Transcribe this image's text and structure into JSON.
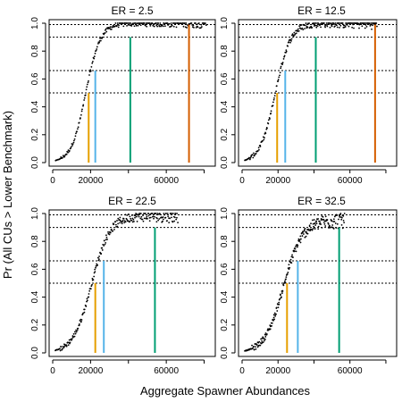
{
  "figure": {
    "ylabel": "Pr (All CUs > Lower Benchmark)",
    "xlabel": "Aggregate Spawner Abundances"
  },
  "chart_data": [
    {
      "type": "scatter",
      "title": "ER = 2.5",
      "xlim": [
        0,
        84000
      ],
      "ylim": [
        0,
        1
      ],
      "xticks": [
        0,
        20000,
        40000,
        60000,
        80000
      ],
      "xtick_labels": [
        "0",
        "20000",
        "",
        "60000",
        ""
      ],
      "yticks": [
        0,
        0.2,
        0.4,
        0.6,
        0.8,
        1.0
      ],
      "ytick_labels": [
        "0.0",
        "0.2",
        "0.4",
        "0.6",
        "0.8",
        "1.0"
      ],
      "hlines": [
        0.5,
        0.66,
        0.9,
        0.99
      ],
      "curve": {
        "x_start": 1500,
        "x_end": 81000,
        "mid": 17500,
        "scale": 3800,
        "plateau": 1.0,
        "noise": 0.012
      },
      "vlines": [
        {
          "x": 19000,
          "y": 0.5,
          "color": "#E69F00"
        },
        {
          "x": 22500,
          "y": 0.66,
          "color": "#56B4E9"
        },
        {
          "x": 41000,
          "y": 0.9,
          "color": "#009E73"
        },
        {
          "x": 72000,
          "y": 0.99,
          "color": "#D55E00"
        }
      ]
    },
    {
      "type": "scatter",
      "title": "ER = 12.5",
      "xlim": [
        0,
        84000
      ],
      "ylim": [
        0,
        1
      ],
      "xticks": [
        0,
        20000,
        40000,
        60000,
        80000
      ],
      "xtick_labels": [
        "0",
        "20000",
        "",
        "60000",
        ""
      ],
      "yticks": [
        0,
        0.2,
        0.4,
        0.6,
        0.8,
        1.0
      ],
      "ytick_labels": [
        "0.0",
        "0.2",
        "0.4",
        "0.6",
        "0.8",
        "1.0"
      ],
      "hlines": [
        0.5,
        0.66,
        0.9,
        0.99
      ],
      "curve": {
        "x_start": 1500,
        "x_end": 75000,
        "mid": 18500,
        "scale": 4200,
        "plateau": 1.0,
        "noise": 0.015
      },
      "vlines": [
        {
          "x": 19500,
          "y": 0.5,
          "color": "#E69F00"
        },
        {
          "x": 24000,
          "y": 0.66,
          "color": "#56B4E9"
        },
        {
          "x": 41000,
          "y": 0.9,
          "color": "#009E73"
        },
        {
          "x": 74000,
          "y": 0.99,
          "color": "#D55E00"
        }
      ]
    },
    {
      "type": "scatter",
      "title": "ER = 22.5",
      "xlim": [
        0,
        84000
      ],
      "ylim": [
        0,
        1
      ],
      "xticks": [
        0,
        20000,
        40000,
        60000,
        80000
      ],
      "xtick_labels": [
        "0",
        "20000",
        "",
        "60000",
        ""
      ],
      "yticks": [
        0,
        0.2,
        0.4,
        0.6,
        0.8,
        1.0
      ],
      "ytick_labels": [
        "0.0",
        "0.2",
        "0.4",
        "0.6",
        "0.8",
        "1.0"
      ],
      "hlines": [
        0.5,
        0.66,
        0.9,
        0.99
      ],
      "curve": {
        "x_start": 1500,
        "x_end": 66000,
        "mid": 20500,
        "scale": 4800,
        "plateau": 0.985,
        "noise": 0.018
      },
      "vlines": [
        {
          "x": 22500,
          "y": 0.5,
          "color": "#E69F00"
        },
        {
          "x": 27000,
          "y": 0.66,
          "color": "#56B4E9"
        },
        {
          "x": 54000,
          "y": 0.9,
          "color": "#009E73"
        }
      ]
    },
    {
      "type": "scatter",
      "title": "ER = 32.5",
      "xlim": [
        0,
        84000
      ],
      "ylim": [
        0,
        1
      ],
      "xticks": [
        0,
        20000,
        40000,
        60000,
        80000
      ],
      "xtick_labels": [
        "0",
        "20000",
        "",
        "60000",
        ""
      ],
      "yticks": [
        0,
        0.2,
        0.4,
        0.6,
        0.8,
        1.0
      ],
      "ytick_labels": [
        "0.0",
        "0.2",
        "0.4",
        "0.6",
        "0.8",
        "1.0"
      ],
      "hlines": [
        0.5,
        0.66,
        0.9,
        0.99
      ],
      "curve": {
        "x_start": 1500,
        "x_end": 57000,
        "mid": 23000,
        "scale": 5200,
        "plateau": 0.95,
        "noise": 0.022
      },
      "vlines": [
        {
          "x": 25000,
          "y": 0.5,
          "color": "#E69F00"
        },
        {
          "x": 31000,
          "y": 0.66,
          "color": "#56B4E9"
        },
        {
          "x": 54000,
          "y": 0.9,
          "color": "#009E73"
        }
      ]
    }
  ]
}
